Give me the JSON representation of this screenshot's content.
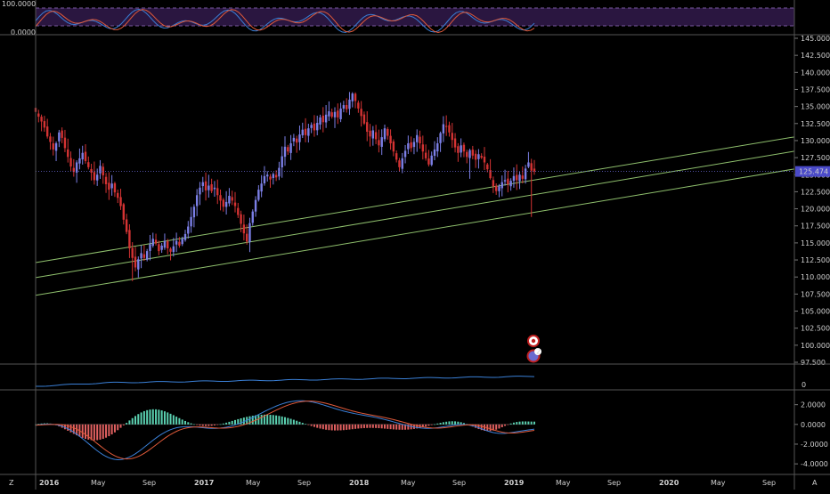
{
  "chart_data": {
    "type": "candlestick",
    "stoch_pane": {
      "ticks": [
        "100.0000",
        "0.0000"
      ]
    },
    "price_pane": {
      "ylim": [
        97.5,
        145
      ],
      "ticks": [
        "145.000",
        "142.500",
        "140.000",
        "137.500",
        "135.000",
        "132.500",
        "130.000",
        "127.500",
        "125.000",
        "122.500",
        "120.000",
        "117.500",
        "115.000",
        "112.500",
        "110.000",
        "107.500",
        "105.000",
        "102.500",
        "100.000",
        "97.500"
      ],
      "last_price": "125.474",
      "trend_channel_lines": [
        {
          "start": {
            "x": "2016-01",
            "y": 112.2
          },
          "end": {
            "x": "2020-12",
            "y": 130.7
          }
        },
        {
          "start": {
            "x": "2016-01",
            "y": 110.0
          },
          "end": {
            "x": "2020-12",
            "y": 128.6
          }
        },
        {
          "start": {
            "x": "2016-01",
            "y": 107.4
          },
          "end": {
            "x": "2020-12",
            "y": 126.0
          }
        }
      ],
      "closes": [
        134.2,
        133.5,
        132.8,
        131.9,
        130.6,
        129.8,
        128.7,
        129.6,
        131.2,
        130.4,
        128.9,
        127.6,
        126.2,
        125.4,
        126.8,
        127.4,
        128.2,
        127.0,
        126.1,
        125.3,
        124.2,
        125.0,
        126.3,
        124.9,
        123.6,
        122.8,
        123.7,
        122.4,
        121.6,
        120.4,
        118.4,
        116.6,
        114.2,
        112.8,
        111.4,
        112.6,
        113.5,
        112.8,
        113.8,
        114.8,
        115.6,
        114.9,
        113.8,
        114.6,
        115.3,
        114.2,
        113.7,
        114.5,
        115.3,
        114.6,
        115.6,
        116.3,
        117.4,
        118.8,
        120.3,
        122.0,
        123.1,
        123.9,
        122.7,
        123.4,
        122.6,
        123.1,
        122.0,
        121.2,
        120.3,
        121.0,
        121.9,
        121.2,
        120.4,
        119.1,
        117.8,
        116.4,
        115.2,
        117.9,
        119.6,
        121.3,
        122.8,
        123.7,
        124.8,
        125.0,
        124.3,
        125.1,
        124.6,
        126.0,
        127.7,
        129.1,
        128.4,
        129.6,
        130.4,
        129.7,
        130.9,
        131.6,
        130.8,
        131.8,
        132.3,
        131.5,
        132.6,
        133.4,
        132.7,
        133.8,
        134.3,
        133.5,
        134.2,
        133.4,
        134.7,
        135.2,
        134.6,
        136.0,
        136.9,
        135.8,
        134.7,
        133.6,
        132.5,
        131.3,
        130.6,
        131.5,
        130.2,
        129.3,
        130.5,
        131.8,
        130.7,
        129.6,
        128.4,
        127.2,
        126.1,
        127.4,
        128.5,
        129.6,
        128.9,
        129.8,
        130.8,
        129.6,
        128.4,
        127.4,
        126.5,
        127.8,
        128.7,
        129.6,
        131.1,
        132.4,
        132.0,
        131.2,
        130.1,
        129.0,
        128.2,
        129.3,
        128.4,
        127.6,
        128.6,
        127.8,
        127.2,
        128.0,
        127.5,
        126.8,
        125.8,
        124.5,
        123.3,
        122.6,
        123.3,
        123.9,
        124.2,
        123.6,
        124.1,
        124.8,
        124.2,
        125.0,
        124.4,
        125.9,
        126.8,
        125.6,
        125.474
      ]
    },
    "oscillator_pane": {
      "ticks": [
        "0"
      ]
    },
    "macd_pane": {
      "ticks": [
        "2.0000",
        "0.0000",
        "-2.0000",
        "-4.0000"
      ]
    },
    "x_axis_labels": [
      "2016",
      "May",
      "Sep",
      "2017",
      "May",
      "Sep",
      "2018",
      "May",
      "Sep",
      "2019",
      "May",
      "Sep",
      "2020",
      "May",
      "Sep"
    ],
    "x_axis_bold": [
      "2016",
      "2017",
      "2018",
      "2019",
      "2020"
    ],
    "corner_labels": {
      "left": "Z",
      "right": "A"
    },
    "markers": [
      {
        "type": "flag",
        "label": ""
      },
      {
        "type": "bubble",
        "label": "2"
      }
    ]
  },
  "colors": {
    "up": "#7b7fe6",
    "down": "#d43333",
    "channel": "#8fc06d",
    "macd_line": "#3a7fd6",
    "signal_line": "#e05a3a",
    "hist_up": "#5ad0b0",
    "hist_down": "#e06060",
    "stoch_band": "#2a1640",
    "price_tag": "#4a4ac8"
  }
}
